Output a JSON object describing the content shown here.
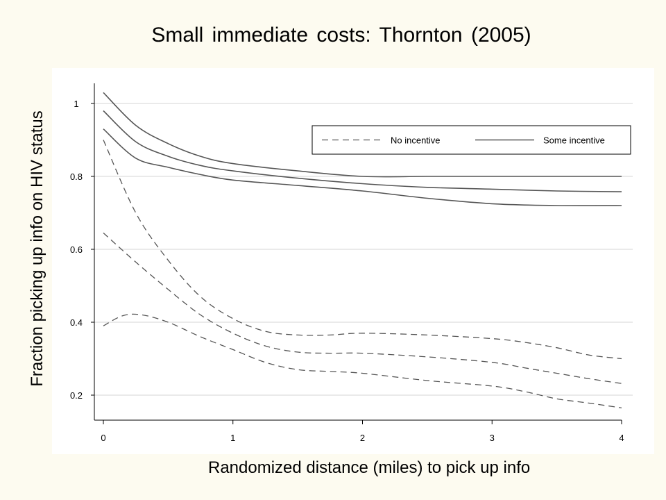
{
  "slide": {
    "title": "Small immediate costs: Thornton (2005)"
  },
  "chart_data": {
    "type": "line",
    "ylabel": "Fraction picking up info on HIV status",
    "xlabel": "Randomized distance (miles) to pick up info",
    "xlim": [
      0,
      4
    ],
    "ylim": [
      0.13,
      1.05
    ],
    "x_ticks": [
      "0",
      "1",
      "2",
      "3",
      "4"
    ],
    "y_ticks": [
      "0.2",
      "0.4",
      "0.6",
      "0.8",
      "1"
    ],
    "grid": true,
    "legend_position": "top-right",
    "legend": [
      {
        "label": "No incentive",
        "style": "dashed"
      },
      {
        "label": "Some incentive",
        "style": "solid"
      }
    ],
    "series": [
      {
        "legend_index": 1,
        "style": "solid",
        "role": "upper-ci",
        "x": [
          0,
          0.25,
          0.5,
          0.75,
          1,
          1.5,
          2,
          2.5,
          3,
          3.5,
          4
        ],
        "y": [
          1.03,
          0.94,
          0.89,
          0.855,
          0.835,
          0.815,
          0.8,
          0.8,
          0.8,
          0.8,
          0.8
        ]
      },
      {
        "legend_index": 1,
        "style": "solid",
        "role": "estimate",
        "x": [
          0,
          0.25,
          0.5,
          0.75,
          1,
          1.5,
          2,
          2.5,
          3,
          3.5,
          4
        ],
        "y": [
          0.98,
          0.895,
          0.855,
          0.83,
          0.815,
          0.795,
          0.78,
          0.77,
          0.765,
          0.76,
          0.758
        ]
      },
      {
        "legend_index": 1,
        "style": "solid",
        "role": "lower-ci",
        "x": [
          0,
          0.25,
          0.5,
          0.75,
          1,
          1.5,
          2,
          2.5,
          3,
          3.5,
          4
        ],
        "y": [
          0.93,
          0.85,
          0.825,
          0.805,
          0.79,
          0.775,
          0.76,
          0.74,
          0.725,
          0.72,
          0.72
        ]
      },
      {
        "legend_index": 0,
        "style": "dashed",
        "role": "upper-ci",
        "x": [
          0,
          0.25,
          0.5,
          0.75,
          1,
          1.25,
          1.5,
          1.75,
          2,
          2.5,
          3,
          3.25,
          3.5,
          3.75,
          4
        ],
        "y": [
          0.9,
          0.7,
          0.57,
          0.47,
          0.41,
          0.375,
          0.365,
          0.365,
          0.37,
          0.365,
          0.355,
          0.345,
          0.33,
          0.31,
          0.3
        ]
      },
      {
        "legend_index": 0,
        "style": "dashed",
        "role": "estimate",
        "x": [
          0,
          0.25,
          0.5,
          0.75,
          1,
          1.25,
          1.5,
          1.75,
          2,
          2.5,
          3,
          3.25,
          3.5,
          3.75,
          4
        ],
        "y": [
          0.645,
          0.565,
          0.49,
          0.42,
          0.37,
          0.335,
          0.318,
          0.315,
          0.315,
          0.305,
          0.29,
          0.275,
          0.26,
          0.245,
          0.232
        ]
      },
      {
        "legend_index": 0,
        "style": "dashed",
        "role": "lower-ci",
        "x": [
          0,
          0.15,
          0.3,
          0.5,
          0.75,
          1,
          1.25,
          1.5,
          1.75,
          2,
          2.5,
          3,
          3.25,
          3.5,
          3.75,
          4
        ],
        "y": [
          0.39,
          0.418,
          0.42,
          0.4,
          0.36,
          0.325,
          0.29,
          0.27,
          0.265,
          0.26,
          0.24,
          0.225,
          0.21,
          0.19,
          0.178,
          0.165
        ]
      }
    ]
  }
}
